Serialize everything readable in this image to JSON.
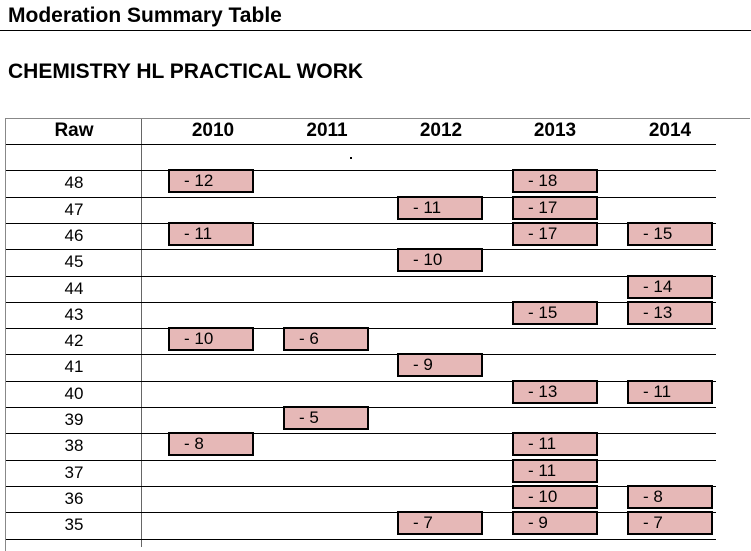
{
  "document": {
    "title": "Moderation Summary Table",
    "subtitle": "CHEMISTRY HL PRACTICAL WORK"
  },
  "table": {
    "raw_header": "Raw",
    "years": [
      "2010",
      "2011",
      "2012",
      "2013",
      "2014"
    ],
    "rows": [
      {
        "raw": "48",
        "values": [
          "- 12",
          "",
          "",
          "- 18",
          ""
        ]
      },
      {
        "raw": "47",
        "values": [
          "",
          "",
          "- 11",
          "- 17",
          ""
        ]
      },
      {
        "raw": "46",
        "values": [
          "- 11",
          "",
          "",
          "- 17",
          "- 15"
        ]
      },
      {
        "raw": "45",
        "values": [
          "",
          "",
          "- 10",
          "",
          ""
        ]
      },
      {
        "raw": "44",
        "values": [
          "",
          "",
          "",
          "",
          "- 14"
        ]
      },
      {
        "raw": "43",
        "values": [
          "",
          "",
          "",
          "- 15",
          "- 13"
        ]
      },
      {
        "raw": "42",
        "values": [
          "- 10",
          "- 6",
          "",
          "",
          ""
        ]
      },
      {
        "raw": "41",
        "values": [
          "",
          "",
          "- 9",
          "",
          ""
        ]
      },
      {
        "raw": "40",
        "values": [
          "",
          "",
          "",
          "- 13",
          "- 11"
        ]
      },
      {
        "raw": "39",
        "values": [
          "",
          "- 5",
          "",
          "",
          ""
        ]
      },
      {
        "raw": "38",
        "values": [
          "- 8",
          "",
          "",
          "- 11",
          ""
        ]
      },
      {
        "raw": "37",
        "values": [
          "",
          "",
          "",
          "- 11",
          ""
        ]
      },
      {
        "raw": "36",
        "values": [
          "",
          "",
          "",
          "- 10",
          "- 8"
        ]
      },
      {
        "raw": "35",
        "values": [
          "",
          "",
          "- 7",
          "- 9",
          "- 7"
        ]
      }
    ]
  },
  "colors": {
    "box_fill": "#e6b8b7",
    "box_border": "#000000"
  }
}
